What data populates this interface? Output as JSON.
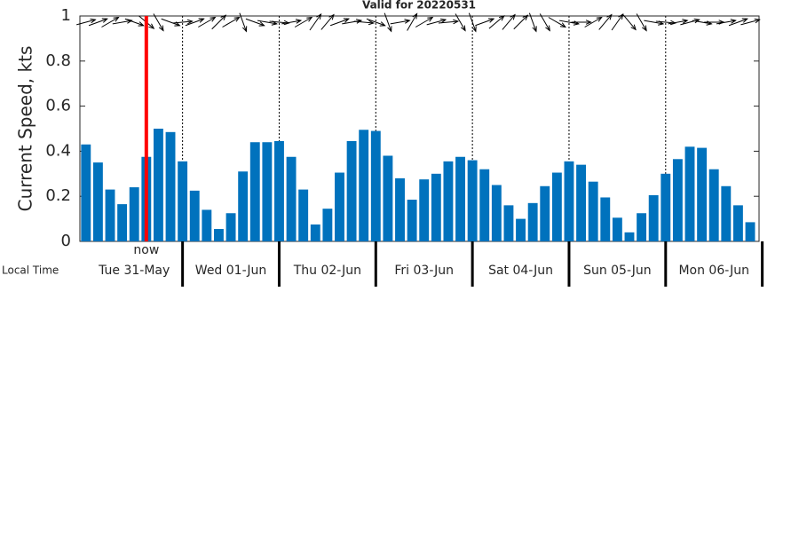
{
  "chart_data": {
    "type": "bar",
    "title": "Valid for 20220531",
    "y_label": "Current Speed, kts",
    "x_label": "Local Time",
    "day_labels": [
      "Tue 31-May",
      "Wed 01-Jun",
      "Thu 02-Jun",
      "Fri 03-Jun",
      "Sat 04-Jun",
      "Sun 05-Jun",
      "Mon 06-Jun"
    ],
    "x": [
      0,
      3,
      6,
      9,
      12,
      15,
      18,
      21,
      24,
      27,
      30,
      33,
      36,
      39,
      42,
      45,
      48,
      51,
      54,
      57,
      60,
      63,
      66,
      69,
      72,
      75,
      78,
      81,
      84,
      87,
      90,
      93,
      96,
      99,
      102,
      105,
      108,
      111,
      114,
      117,
      120,
      123,
      126,
      129,
      132,
      135,
      138,
      141,
      144,
      147,
      150,
      153,
      156,
      159,
      162,
      165
    ],
    "values": [
      0.43,
      0.35,
      0.23,
      0.165,
      0.24,
      0.375,
      0.5,
      0.485,
      0.355,
      0.225,
      0.14,
      0.055,
      0.125,
      0.31,
      0.44,
      0.44,
      0.445,
      0.375,
      0.23,
      0.075,
      0.145,
      0.305,
      0.445,
      0.495,
      0.49,
      0.38,
      0.28,
      0.185,
      0.275,
      0.3,
      0.355,
      0.375,
      0.36,
      0.32,
      0.25,
      0.16,
      0.1,
      0.17,
      0.245,
      0.305,
      0.355,
      0.34,
      0.265,
      0.195,
      0.105,
      0.04,
      0.125,
      0.205,
      0.3,
      0.365,
      0.42,
      0.415,
      0.32,
      0.245,
      0.16,
      0.085
    ],
    "directions": [
      75,
      70,
      60,
      80,
      110,
      130,
      150,
      110,
      85,
      70,
      60,
      45,
      60,
      160,
      110,
      100,
      95,
      80,
      60,
      35,
      40,
      70,
      80,
      95,
      110,
      160,
      80,
      30,
      60,
      75,
      85,
      150,
      160,
      70,
      50,
      40,
      45,
      160,
      150,
      120,
      100,
      90,
      60,
      40,
      35,
      140,
      150,
      100,
      95,
      80,
      75,
      100,
      90,
      80,
      70,
      75
    ],
    "color": "#0072bd",
    "now": {
      "x": 15,
      "label": "now",
      "color": "#ff0000"
    },
    "xlim": [
      -1.5,
      167.2
    ],
    "ylim": [
      0,
      1
    ],
    "yticks": [
      0,
      0.2,
      0.4,
      0.6,
      0.8,
      1
    ]
  }
}
